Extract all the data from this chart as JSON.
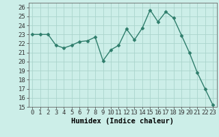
{
  "x": [
    0,
    1,
    2,
    3,
    4,
    5,
    6,
    7,
    8,
    9,
    10,
    11,
    12,
    13,
    14,
    15,
    16,
    17,
    18,
    19,
    20,
    21,
    22,
    23
  ],
  "y": [
    23,
    23,
    23,
    21.8,
    21.5,
    21.8,
    22.2,
    22.3,
    22.7,
    20.1,
    21.3,
    21.8,
    23.6,
    22.4,
    23.7,
    25.7,
    24.4,
    25.5,
    24.8,
    22.9,
    21.0,
    18.8,
    17.0,
    15.2
  ],
  "line_color": "#2e7d6b",
  "marker": "D",
  "markersize": 2.5,
  "linewidth": 1.0,
  "bg_color": "#cceee8",
  "grid_color": "#aad4cc",
  "xlabel": "Humidex (Indice chaleur)",
  "xlabel_fontsize": 7.5,
  "xlim": [
    -0.5,
    23.5
  ],
  "ylim": [
    15,
    26.5
  ],
  "yticks": [
    15,
    16,
    17,
    18,
    19,
    20,
    21,
    22,
    23,
    24,
    25,
    26
  ],
  "xticks": [
    0,
    1,
    2,
    3,
    4,
    5,
    6,
    7,
    8,
    9,
    10,
    11,
    12,
    13,
    14,
    15,
    16,
    17,
    18,
    19,
    20,
    21,
    22,
    23
  ],
  "tick_fontsize": 6.5
}
